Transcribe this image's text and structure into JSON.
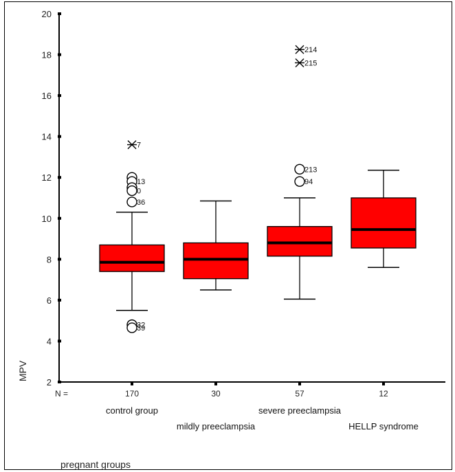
{
  "chart_data": {
    "type": "boxplot",
    "ylabel": "MPV",
    "xlabel": "pregnant groups",
    "n_prefix": "N =",
    "ylim": [
      2,
      20
    ],
    "yticks": [
      2,
      4,
      6,
      8,
      10,
      12,
      14,
      16,
      18,
      20
    ],
    "groups": [
      {
        "name": "control group",
        "label_row": 1,
        "n": "170",
        "whisker_low": 5.5,
        "q1": 7.4,
        "median": 7.85,
        "q3": 8.7,
        "whisker_high": 10.3,
        "outliers": [
          {
            "y": 13.6,
            "marker": "star",
            "label": "7"
          },
          {
            "y": 12.0,
            "marker": "circle",
            "label": ""
          },
          {
            "y": 11.8,
            "marker": "circle",
            "label": "13"
          },
          {
            "y": 11.5,
            "marker": "circle",
            "label": ""
          },
          {
            "y": 11.35,
            "marker": "circle",
            "label": "0"
          },
          {
            "y": 10.8,
            "marker": "circle",
            "label": "36"
          },
          {
            "y": 4.8,
            "marker": "circle",
            "label": "32"
          },
          {
            "y": 4.65,
            "marker": "circle",
            "label": "39"
          }
        ]
      },
      {
        "name": "mildly preeclampsia",
        "label_row": 2,
        "n": "30",
        "whisker_low": 6.5,
        "q1": 7.05,
        "median": 8.0,
        "q3": 8.8,
        "whisker_high": 10.85,
        "outliers": []
      },
      {
        "name": "severe preeclampsia",
        "label_row": 1,
        "n": "57",
        "whisker_low": 6.05,
        "q1": 8.15,
        "median": 8.8,
        "q3": 9.6,
        "whisker_high": 11.0,
        "outliers": [
          {
            "y": 18.25,
            "marker": "star",
            "label": "214"
          },
          {
            "y": 17.6,
            "marker": "star",
            "label": "215"
          },
          {
            "y": 12.4,
            "marker": "circle",
            "label": "213"
          },
          {
            "y": 11.8,
            "marker": "circle",
            "label": "94"
          }
        ]
      },
      {
        "name": "HELLP syndrome",
        "label_row": 2,
        "n": "12",
        "whisker_low": 7.6,
        "q1": 8.55,
        "median": 9.45,
        "q3": 11.0,
        "whisker_high": 12.35,
        "outliers": []
      }
    ],
    "box_color": "#ff0000",
    "line_color": "#000000",
    "grid": false
  }
}
